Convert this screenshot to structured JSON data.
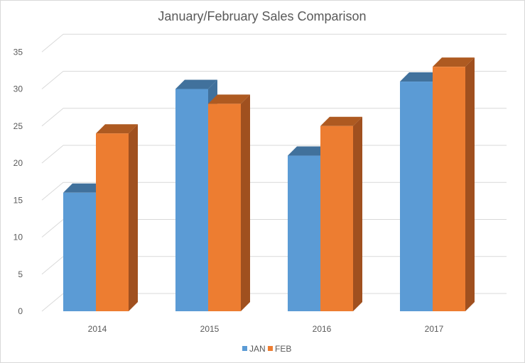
{
  "chart_data": {
    "type": "bar",
    "title": "January/February Sales Comparison",
    "xlabel": "",
    "ylabel": "",
    "categories": [
      "2014",
      "2015",
      "2016",
      "2017"
    ],
    "series": [
      {
        "name": "JAN",
        "values": [
          16,
          30,
          21,
          31
        ],
        "color": "#5b9bd5",
        "side_color": "#41719c",
        "top_color": "#41719c"
      },
      {
        "name": "FEB",
        "values": [
          24,
          28,
          25,
          33
        ],
        "color": "#ed7d31",
        "side_color": "#a0501f",
        "top_color": "#ae5a21"
      }
    ],
    "ylim": [
      0,
      35
    ],
    "yticks": [
      0,
      5,
      10,
      15,
      20,
      25,
      30,
      35
    ],
    "grid": true,
    "legend_position": "bottom",
    "style": "3d-clustered-column"
  }
}
